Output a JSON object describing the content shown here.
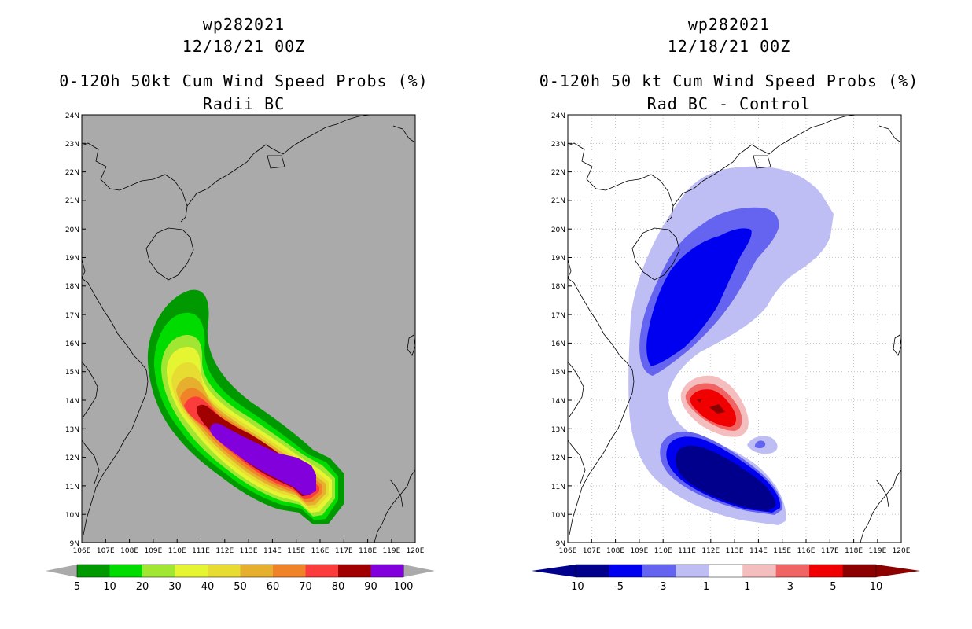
{
  "panels": [
    {
      "id": "left",
      "storm_id": "wp282021",
      "datetime": "12/18/21 00Z",
      "title": "0-120h 50kt Cum Wind Speed Probs (%)",
      "subtitle": "Radii BC",
      "map_background": "#aaaaaa",
      "lat_labels": [
        "24N",
        "23N",
        "22N",
        "21N",
        "20N",
        "19N",
        "18N",
        "17N",
        "16N",
        "15N",
        "14N",
        "13N",
        "12N",
        "11N",
        "10N",
        "9N"
      ],
      "lon_labels": [
        "106E",
        "107E",
        "108E",
        "109E",
        "110E",
        "111E",
        "112E",
        "113E",
        "114E",
        "115E",
        "116E",
        "117E",
        "118E",
        "119E",
        "120E"
      ],
      "colorbar": {
        "labels": [
          "5",
          "10",
          "20",
          "30",
          "40",
          "50",
          "60",
          "70",
          "80",
          "90",
          "100"
        ],
        "colors": [
          "#009a00",
          "#00dc00",
          "#a0e632",
          "#e6f532",
          "#e6dc32",
          "#e6af2d",
          "#f08228",
          "#fa3c3c",
          "#a00000",
          "#8200dc"
        ]
      }
    },
    {
      "id": "right",
      "storm_id": "wp282021",
      "datetime": "12/18/21 00Z",
      "title": "0-120h 50 kt Cum Wind Speed Probs (%)",
      "subtitle": "Rad BC - Control",
      "map_background": "#ffffff",
      "lat_labels": [
        "24N",
        "23N",
        "22N",
        "21N",
        "20N",
        "19N",
        "18N",
        "17N",
        "16N",
        "15N",
        "14N",
        "13N",
        "12N",
        "11N",
        "10N",
        "9N"
      ],
      "lon_labels": [
        "106E",
        "107E",
        "108E",
        "109E",
        "110E",
        "111E",
        "112E",
        "113E",
        "114E",
        "115E",
        "116E",
        "117E",
        "118E",
        "119E",
        "120E"
      ],
      "colorbar": {
        "labels": [
          "-10",
          "-5",
          "-3",
          "-1",
          "1",
          "3",
          "5",
          "10"
        ],
        "colors": [
          "#00008c",
          "#0000f0",
          "#6464f0",
          "#bebef5",
          "#ffffff",
          "#f5bebe",
          "#f06464",
          "#f00000",
          "#8c0000"
        ]
      }
    }
  ]
}
